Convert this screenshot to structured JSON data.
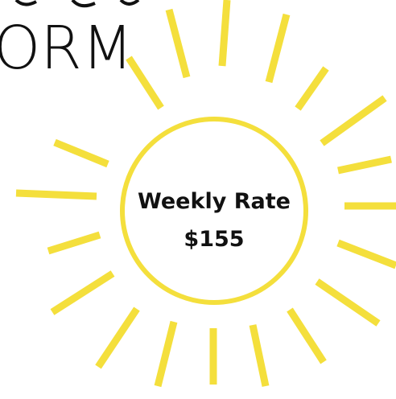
{
  "heading": "ORM",
  "badge": {
    "label": "Weekly Rate",
    "price": "$155"
  }
}
